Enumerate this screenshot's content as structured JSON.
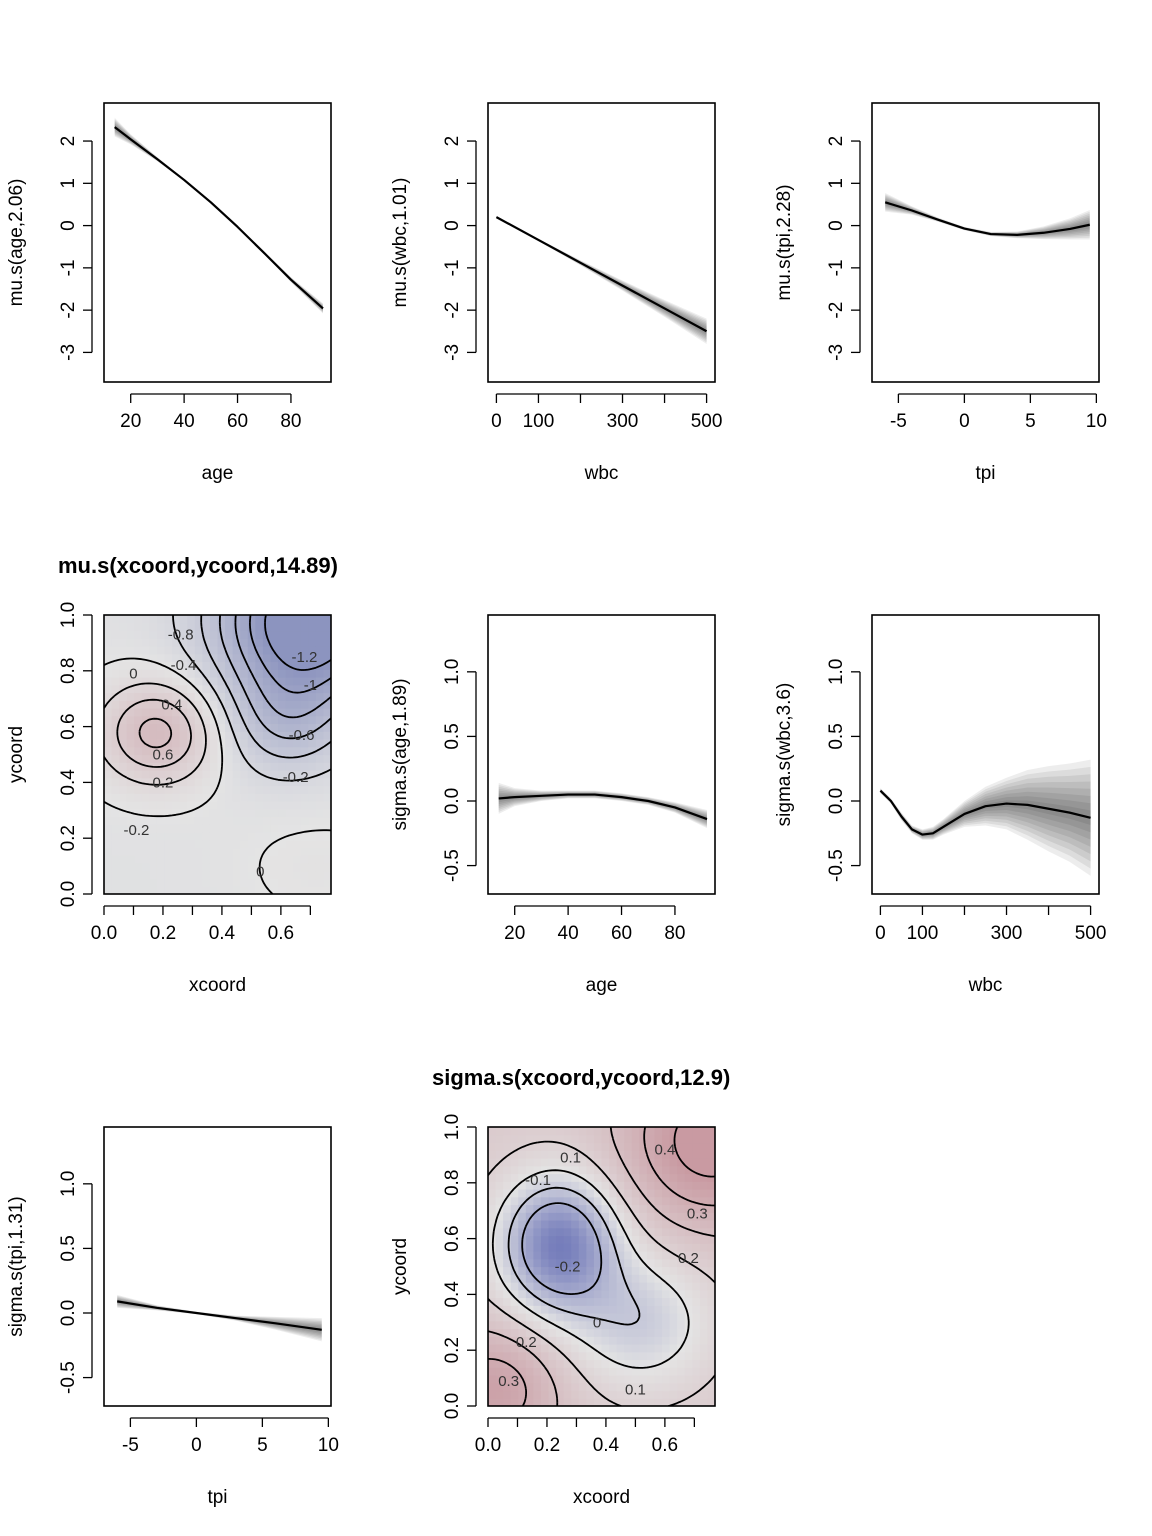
{
  "chart_data": [
    {
      "type": "line",
      "title": "",
      "xlabel": "age",
      "ylabel": "mu.s(age,2.06)",
      "xlim": [
        10,
        95
      ],
      "ylim": [
        -3.7,
        2.9
      ],
      "xticks": [
        20,
        40,
        60,
        80
      ],
      "xtick_labels": [
        "20",
        "40",
        "60",
        "80"
      ],
      "yticks": [
        -3,
        -2,
        -1,
        0,
        1,
        2
      ],
      "ytick_labels": [
        "-3",
        "-2",
        "-1",
        "0",
        "1",
        "2"
      ],
      "x": [
        14,
        20,
        30,
        40,
        50,
        60,
        70,
        80,
        92
      ],
      "y": [
        2.33,
        2.04,
        1.57,
        1.08,
        0.55,
        -0.03,
        -0.65,
        -1.28,
        -1.96
      ],
      "band": [
        0.22,
        0.12,
        0.05,
        0.02,
        0.02,
        0.02,
        0.03,
        0.06,
        0.12
      ],
      "grid": false
    },
    {
      "type": "line",
      "title": "",
      "xlabel": "wbc",
      "ylabel": "mu.s(wbc,1.01)",
      "xlim": [
        -20,
        520
      ],
      "ylim": [
        -3.7,
        2.9
      ],
      "xticks": [
        0,
        100,
        200,
        300,
        400,
        500
      ],
      "xtick_labels": [
        "0",
        "100",
        "",
        "300",
        "",
        "500"
      ],
      "yticks": [
        -3,
        -2,
        -1,
        0,
        1,
        2
      ],
      "ytick_labels": [
        "-3",
        "-2",
        "-1",
        "0",
        "1",
        "2"
      ],
      "x": [
        0,
        100,
        200,
        300,
        400,
        500
      ],
      "y": [
        0.2,
        -0.34,
        -0.88,
        -1.42,
        -1.96,
        -2.5
      ],
      "band": [
        0.02,
        0.03,
        0.06,
        0.12,
        0.2,
        0.3
      ],
      "grid": false
    },
    {
      "type": "line",
      "title": "",
      "xlabel": "tpi",
      "ylabel": "mu.s(tpi,2.28)",
      "xlim": [
        -7,
        10.2
      ],
      "ylim": [
        -3.7,
        2.9
      ],
      "xticks": [
        -5,
        0,
        5,
        10
      ],
      "xtick_labels": [
        "-5",
        "0",
        "5",
        "10"
      ],
      "yticks": [
        -3,
        -2,
        -1,
        0,
        1,
        2
      ],
      "ytick_labels": [
        "-3",
        "-2",
        "-1",
        "0",
        "1",
        "2"
      ],
      "x": [
        -6,
        -4,
        -2,
        0,
        2,
        4,
        6,
        8,
        9.5
      ],
      "y": [
        0.55,
        0.36,
        0.14,
        -0.07,
        -0.2,
        -0.22,
        -0.17,
        -0.08,
        0.02
      ],
      "band": [
        0.22,
        0.1,
        0.05,
        0.04,
        0.05,
        0.08,
        0.15,
        0.25,
        0.35
      ],
      "grid": false
    },
    {
      "type": "heatmap",
      "title": "mu.s(xcoord,ycoord,14.89)",
      "xlabel": "xcoord",
      "ylabel": "ycoord",
      "xlim": [
        0,
        0.77
      ],
      "ylim": [
        0,
        1
      ],
      "xticks": [
        0,
        0.1,
        0.2,
        0.3,
        0.4,
        0.5,
        0.6,
        0.7
      ],
      "xtick_labels": [
        "0.0",
        "",
        "0.2",
        "",
        "0.4",
        "",
        "0.6",
        ""
      ],
      "yticks": [
        0,
        0.2,
        0.4,
        0.6,
        0.8,
        1.0
      ],
      "ytick_labels": [
        "0.0",
        "0.2",
        "0.4",
        "0.6",
        "0.8",
        "1.0"
      ],
      "surface": {
        "base": -0.05,
        "bumps": [
          {
            "x": 0.18,
            "y": 0.58,
            "sx": 0.14,
            "sy": 0.13,
            "a": 0.72
          },
          {
            "x": 0.7,
            "y": 0.98,
            "sx": 0.22,
            "sy": 0.2,
            "a": -1.45
          },
          {
            "x": 0.62,
            "y": 0.62,
            "sx": 0.14,
            "sy": 0.14,
            "a": -0.45
          },
          {
            "x": 0.72,
            "y": 0.1,
            "sx": 0.2,
            "sy": 0.16,
            "a": 0.08
          }
        ]
      },
      "contour_levels": [
        -1.2,
        -1,
        -0.8,
        -0.6,
        -0.4,
        -0.2,
        0,
        0.2,
        0.4,
        0.6
      ],
      "contour_labels": [
        {
          "text": "-0.8",
          "x": 0.26,
          "y": 0.93
        },
        {
          "text": "-1.2",
          "x": 0.68,
          "y": 0.85
        },
        {
          "text": "-0.4",
          "x": 0.27,
          "y": 0.82
        },
        {
          "text": "0",
          "x": 0.1,
          "y": 0.79
        },
        {
          "text": "-1",
          "x": 0.7,
          "y": 0.75
        },
        {
          "text": "0.4",
          "x": 0.23,
          "y": 0.68
        },
        {
          "text": "-0.6",
          "x": 0.67,
          "y": 0.57
        },
        {
          "text": "0.6",
          "x": 0.2,
          "y": 0.5
        },
        {
          "text": "-0.2",
          "x": 0.65,
          "y": 0.42
        },
        {
          "text": "0.2",
          "x": 0.2,
          "y": 0.4
        },
        {
          "text": "-0.2",
          "x": 0.11,
          "y": 0.23
        },
        {
          "text": "0",
          "x": 0.53,
          "y": 0.08
        }
      ],
      "colors": {
        "positive": "#c48d96",
        "negative": "#7d86b8",
        "neutral": "#e4e4e4"
      }
    },
    {
      "type": "line",
      "title": "",
      "xlabel": "age",
      "ylabel": "sigma.s(age,1.89)",
      "xlim": [
        10,
        95
      ],
      "ylim": [
        -0.72,
        1.44
      ],
      "xticks": [
        20,
        40,
        60,
        80
      ],
      "xtick_labels": [
        "20",
        "40",
        "60",
        "80"
      ],
      "yticks": [
        -0.5,
        0,
        0.5,
        1.0
      ],
      "ytick_labels": [
        "-0.5",
        "0.0",
        "0.5",
        "1.0"
      ],
      "x": [
        14,
        20,
        30,
        40,
        50,
        60,
        70,
        80,
        92
      ],
      "y": [
        0.02,
        0.03,
        0.04,
        0.05,
        0.05,
        0.03,
        0.0,
        -0.05,
        -0.14
      ],
      "band": [
        0.12,
        0.07,
        0.04,
        0.03,
        0.03,
        0.03,
        0.03,
        0.04,
        0.07
      ],
      "grid": false
    },
    {
      "type": "line",
      "title": "",
      "xlabel": "wbc",
      "ylabel": "sigma.s(wbc,3.6)",
      "xlim": [
        -20,
        520
      ],
      "ylim": [
        -0.72,
        1.44
      ],
      "xticks": [
        0,
        100,
        200,
        300,
        400,
        500
      ],
      "xtick_labels": [
        "0",
        "100",
        "",
        "300",
        "",
        "500"
      ],
      "yticks": [
        -0.5,
        0,
        0.5,
        1.0
      ],
      "ytick_labels": [
        "-0.5",
        "0.0",
        "0.5",
        "1.0"
      ],
      "x": [
        0,
        25,
        50,
        75,
        100,
        125,
        150,
        200,
        250,
        300,
        350,
        400,
        450,
        500
      ],
      "y": [
        0.08,
        0.0,
        -0.12,
        -0.22,
        -0.26,
        -0.25,
        -0.2,
        -0.1,
        -0.04,
        -0.02,
        -0.03,
        -0.06,
        -0.09,
        -0.13
      ],
      "band": [
        0.02,
        0.02,
        0.03,
        0.03,
        0.04,
        0.05,
        0.06,
        0.1,
        0.15,
        0.2,
        0.27,
        0.33,
        0.38,
        0.45
      ],
      "grid": false
    },
    {
      "type": "line",
      "title": "",
      "xlabel": "tpi",
      "ylabel": "sigma.s(tpi,1.31)",
      "xlim": [
        -7,
        10.2
      ],
      "ylim": [
        -0.72,
        1.44
      ],
      "xticks": [
        -5,
        0,
        5,
        10
      ],
      "xtick_labels": [
        "-5",
        "0",
        "5",
        "10"
      ],
      "yticks": [
        -0.5,
        0,
        0.5,
        1.0
      ],
      "ytick_labels": [
        "-0.5",
        "0.0",
        "0.5",
        "1.0"
      ],
      "x": [
        -6,
        -3,
        0,
        3,
        6,
        9.5
      ],
      "y": [
        0.09,
        0.04,
        0.0,
        -0.04,
        -0.08,
        -0.13
      ],
      "band": [
        0.05,
        0.02,
        0.01,
        0.02,
        0.05,
        0.09
      ],
      "grid": false
    },
    {
      "type": "heatmap",
      "title": "sigma.s(xcoord,ycoord,12.9)",
      "xlabel": "xcoord",
      "ylabel": "ycoord",
      "xlim": [
        0,
        0.77
      ],
      "ylim": [
        0,
        1
      ],
      "xticks": [
        0,
        0.1,
        0.2,
        0.3,
        0.4,
        0.5,
        0.6,
        0.7
      ],
      "xtick_labels": [
        "0.0",
        "",
        "0.2",
        "",
        "0.4",
        "",
        "0.6",
        ""
      ],
      "yticks": [
        0,
        0.2,
        0.4,
        0.6,
        0.8,
        1.0
      ],
      "ytick_labels": [
        "0.0",
        "0.2",
        "0.4",
        "0.6",
        "0.8",
        "1.0"
      ],
      "surface": {
        "base": 0.14,
        "bumps": [
          {
            "x": 0.24,
            "y": 0.58,
            "sx": 0.14,
            "sy": 0.17,
            "a": -0.5
          },
          {
            "x": 0.52,
            "y": 0.3,
            "sx": 0.17,
            "sy": 0.17,
            "a": -0.22
          },
          {
            "x": 0.76,
            "y": 0.95,
            "sx": 0.2,
            "sy": 0.2,
            "a": 0.32
          },
          {
            "x": 0.02,
            "y": 0.06,
            "sx": 0.15,
            "sy": 0.15,
            "a": 0.22
          }
        ]
      },
      "contour_levels": [
        -0.2,
        -0.1,
        0,
        0.1,
        0.2,
        0.3,
        0.4
      ],
      "contour_labels": [
        {
          "text": "0.4",
          "x": 0.6,
          "y": 0.92
        },
        {
          "text": "0.1",
          "x": 0.28,
          "y": 0.89
        },
        {
          "text": "-0.1",
          "x": 0.17,
          "y": 0.81
        },
        {
          "text": "0.3",
          "x": 0.71,
          "y": 0.69
        },
        {
          "text": "0.2",
          "x": 0.68,
          "y": 0.53
        },
        {
          "text": "-0.2",
          "x": 0.27,
          "y": 0.5
        },
        {
          "text": "0",
          "x": 0.37,
          "y": 0.3
        },
        {
          "text": "0.2",
          "x": 0.13,
          "y": 0.23
        },
        {
          "text": "0.3",
          "x": 0.07,
          "y": 0.09
        },
        {
          "text": "0.1",
          "x": 0.5,
          "y": 0.06
        }
      ],
      "colors": {
        "positive": "#c48d96",
        "negative": "#5862b0",
        "neutral": "#e4e4e4"
      }
    }
  ]
}
